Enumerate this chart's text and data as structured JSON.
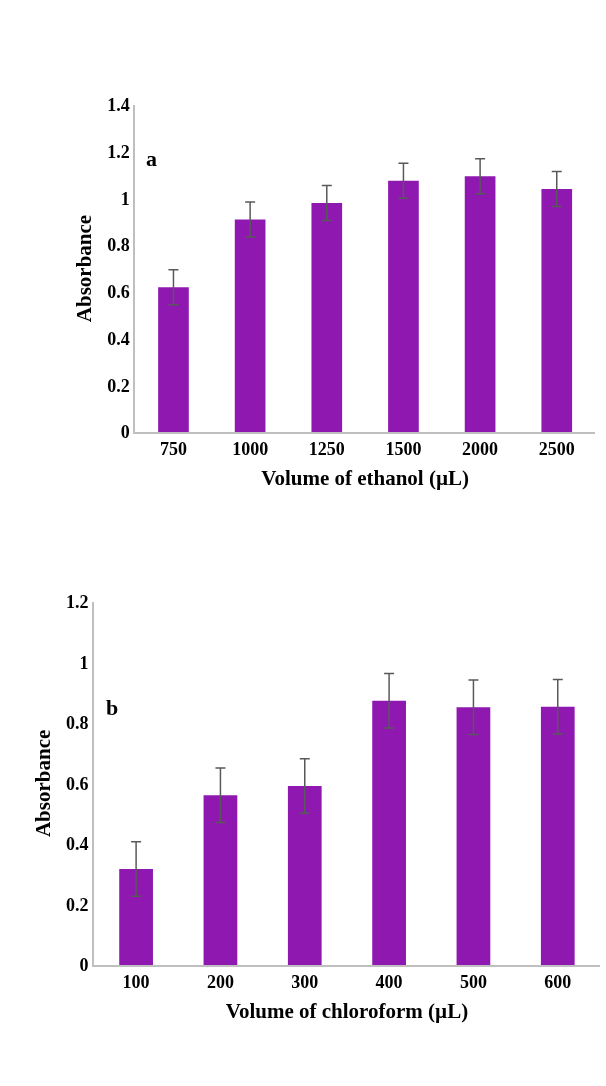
{
  "chart_data": [
    {
      "type": "bar",
      "categories": [
        "750",
        "1000",
        "1250",
        "1500",
        "2000",
        "2500"
      ],
      "xlabel": "Volume of ethanol (µL)",
      "ylabel": "Absorbance",
      "annotations": [
        "a"
      ],
      "series": [
        {
          "color": "#8e18b0",
          "values": [
            0.62,
            0.91,
            0.98,
            1.075,
            1.095,
            1.04
          ],
          "errors": [
            0.075,
            0.075,
            0.075,
            0.075,
            0.075,
            0.075
          ]
        }
      ],
      "ylim": [
        0,
        1.4
      ],
      "yticks": [
        0,
        0.2,
        0.4,
        0.6,
        0.8,
        1,
        1.2,
        1.4
      ]
    },
    {
      "type": "bar",
      "categories": [
        "100",
        "200",
        "300",
        "400",
        "500",
        "600"
      ],
      "xlabel": "Volume of chloroform (µL)",
      "ylabel": "Absorbance",
      "annotations": [
        "b"
      ],
      "series": [
        {
          "color": "#8e18b0",
          "values": [
            0.317,
            0.561,
            0.591,
            0.873,
            0.851,
            0.853
          ],
          "errors": [
            0.09,
            0.09,
            0.09,
            0.09,
            0.09,
            0.09
          ]
        }
      ],
      "ylim": [
        0,
        1.2
      ],
      "yticks": [
        0,
        0.2,
        0.4,
        0.6,
        0.8,
        1,
        1.2
      ]
    }
  ]
}
